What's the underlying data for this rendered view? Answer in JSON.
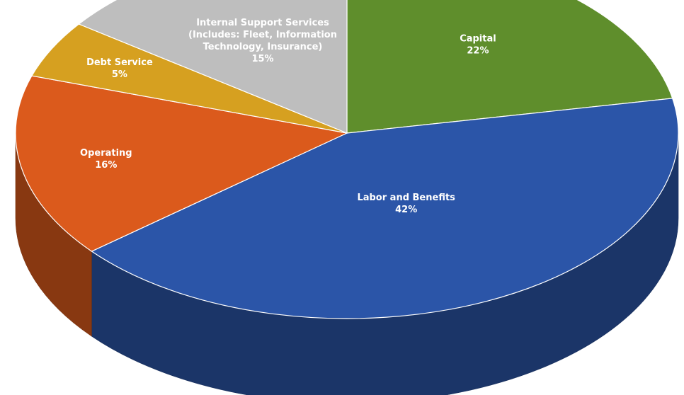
{
  "chart_data": {
    "type": "pie",
    "style": "3d",
    "title": "",
    "slices": [
      {
        "label": "Capital",
        "value": 22,
        "value_label": "22%",
        "color": "#5f8e2c"
      },
      {
        "label": "Labor and Benefits",
        "value": 42,
        "value_label": "42%",
        "color": "#2b55a8"
      },
      {
        "label": "Operating",
        "value": 16,
        "value_label": "16%",
        "color": "#db5a1c"
      },
      {
        "label": "Debt Service",
        "value": 5,
        "value_label": "5%",
        "color": "#d6a020"
      },
      {
        "label": "Internal Support Services (Includes: Fleet, Information Technology, Insurance)",
        "label_lines": [
          "Internal Support Services",
          "(Includes: Fleet, Information",
          "Technology, Insurance)"
        ],
        "value": 15,
        "value_label": "15%",
        "color": "#bebebe"
      }
    ]
  }
}
